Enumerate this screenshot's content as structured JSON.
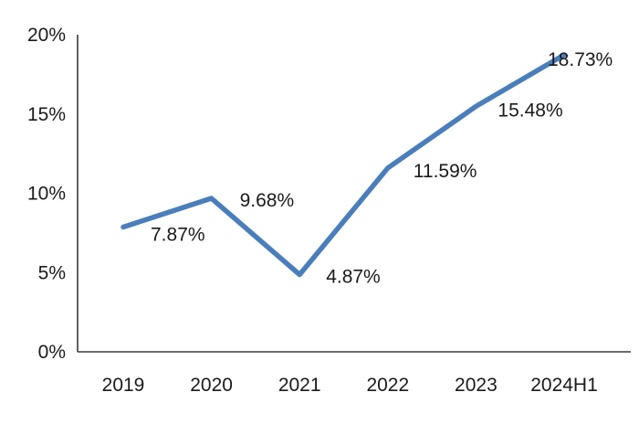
{
  "chart_data": {
    "type": "line",
    "title": "",
    "categories": [
      "2019",
      "2020",
      "2021",
      "2022",
      "2023",
      "2024H1"
    ],
    "values": [
      7.87,
      9.68,
      4.87,
      11.59,
      15.48,
      18.73
    ],
    "data_labels": [
      "7.87%",
      "9.68%",
      "4.87%",
      "11.59%",
      "15.48%",
      "18.73%"
    ],
    "ylim": [
      0,
      20
    ],
    "yticks": [
      0,
      5,
      10,
      15,
      20
    ],
    "ytick_labels": [
      "0%",
      "5%",
      "10%",
      "15%",
      "20%"
    ],
    "xlabel": "",
    "ylabel": "",
    "grid": false,
    "legend": "none",
    "line_color": "#4a7ebb",
    "axis_color": "#3a3a3a",
    "text_color": "#1a1a1a"
  }
}
